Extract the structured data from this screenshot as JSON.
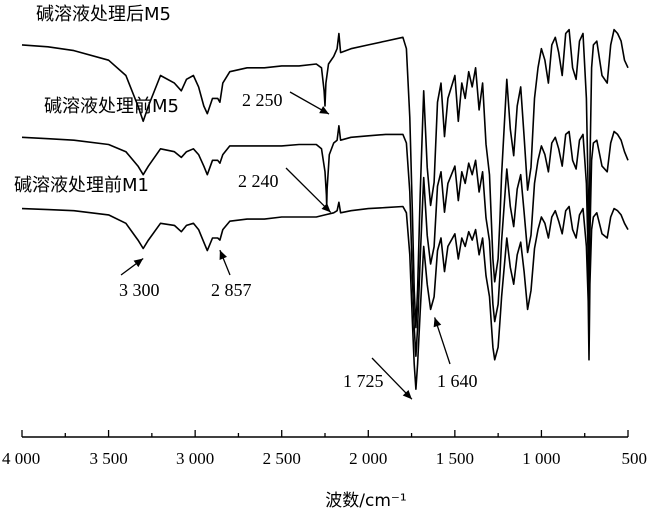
{
  "chart_data": {
    "type": "line",
    "title": "",
    "xlabel": "波数/cm⁻¹",
    "ylabel": "",
    "xlim": [
      4000,
      500
    ],
    "x_reversed": true,
    "x_ticks": [
      4000,
      3500,
      3000,
      2500,
      2000,
      1500,
      1000,
      500
    ],
    "x_tick_labels": [
      "4 000",
      "3 500",
      "3 000",
      "2 500",
      "2 000",
      "1 500",
      "1 000",
      "500"
    ],
    "y_axis_visible": false,
    "grid": false,
    "series": [
      {
        "name": "碱溶液处理后M5",
        "baseline": 0.94,
        "x": [
          4000,
          3850,
          3700,
          3500,
          3400,
          3330,
          3300,
          3270,
          3200,
          3120,
          3080,
          3050,
          3010,
          2980,
          2950,
          2930,
          2900,
          2870,
          2857,
          2840,
          2800,
          2700,
          2600,
          2500,
          2400,
          2300,
          2270,
          2255,
          2250,
          2245,
          2230,
          2200,
          2180,
          2170,
          2160,
          2100,
          2000,
          1900,
          1800,
          1780,
          1760,
          1745,
          1735,
          1725,
          1715,
          1700,
          1680,
          1660,
          1640,
          1620,
          1600,
          1580,
          1560,
          1540,
          1500,
          1480,
          1460,
          1440,
          1420,
          1400,
          1380,
          1360,
          1340,
          1320,
          1300,
          1280,
          1270,
          1250,
          1240,
          1230,
          1200,
          1180,
          1160,
          1140,
          1120,
          1100,
          1080,
          1060,
          1040,
          1020,
          1000,
          980,
          960,
          940,
          920,
          900,
          880,
          860,
          840,
          820,
          800,
          780,
          760,
          740,
          730,
          725,
          720,
          710,
          700,
          680,
          650,
          620,
          600,
          580,
          560,
          540,
          520,
          500
        ],
        "y": [
          0.94,
          0.935,
          0.925,
          0.9,
          0.86,
          0.78,
          0.74,
          0.78,
          0.86,
          0.84,
          0.82,
          0.85,
          0.86,
          0.83,
          0.78,
          0.76,
          0.8,
          0.8,
          0.79,
          0.84,
          0.87,
          0.88,
          0.88,
          0.885,
          0.885,
          0.89,
          0.88,
          0.82,
          0.78,
          0.84,
          0.89,
          0.91,
          0.93,
          0.97,
          0.92,
          0.93,
          0.94,
          0.95,
          0.96,
          0.93,
          0.75,
          0.5,
          0.3,
          0.2,
          0.3,
          0.55,
          0.82,
          0.62,
          0.52,
          0.58,
          0.79,
          0.84,
          0.7,
          0.8,
          0.86,
          0.74,
          0.84,
          0.8,
          0.87,
          0.83,
          0.88,
          0.77,
          0.84,
          0.68,
          0.6,
          0.38,
          0.32,
          0.38,
          0.48,
          0.6,
          0.85,
          0.72,
          0.65,
          0.78,
          0.83,
          0.7,
          0.56,
          0.62,
          0.8,
          0.88,
          0.93,
          0.9,
          0.84,
          0.94,
          0.96,
          0.92,
          0.86,
          0.97,
          0.98,
          0.88,
          0.85,
          0.95,
          0.97,
          0.8,
          0.55,
          0.32,
          0.62,
          0.88,
          0.94,
          0.95,
          0.86,
          0.84,
          0.94,
          0.98,
          0.97,
          0.95,
          0.9,
          0.88
        ]
      },
      {
        "name": "碱溶液处理前M5",
        "baseline": 0.94,
        "x": [
          4000,
          3850,
          3700,
          3500,
          3400,
          3330,
          3300,
          3270,
          3200,
          3120,
          3080,
          3050,
          3010,
          2980,
          2950,
          2930,
          2900,
          2870,
          2857,
          2840,
          2800,
          2700,
          2600,
          2500,
          2400,
          2300,
          2270,
          2250,
          2242,
          2240,
          2238,
          2225,
          2200,
          2180,
          2170,
          2160,
          2100,
          2000,
          1900,
          1800,
          1780,
          1760,
          1745,
          1735,
          1725,
          1715,
          1700,
          1680,
          1660,
          1640,
          1620,
          1600,
          1580,
          1560,
          1540,
          1500,
          1480,
          1460,
          1440,
          1420,
          1400,
          1380,
          1360,
          1340,
          1320,
          1300,
          1280,
          1270,
          1250,
          1240,
          1230,
          1200,
          1180,
          1160,
          1140,
          1120,
          1100,
          1080,
          1060,
          1040,
          1020,
          1000,
          980,
          960,
          940,
          920,
          900,
          880,
          860,
          840,
          820,
          800,
          780,
          760,
          740,
          730,
          725,
          720,
          710,
          700,
          680,
          650,
          620,
          600,
          580,
          560,
          540,
          520,
          500
        ],
        "y": [
          0.94,
          0.935,
          0.93,
          0.915,
          0.89,
          0.84,
          0.81,
          0.84,
          0.9,
          0.89,
          0.87,
          0.89,
          0.9,
          0.88,
          0.84,
          0.81,
          0.86,
          0.86,
          0.85,
          0.88,
          0.91,
          0.91,
          0.91,
          0.91,
          0.915,
          0.915,
          0.9,
          0.82,
          0.74,
          0.7,
          0.76,
          0.88,
          0.92,
          0.93,
          0.98,
          0.93,
          0.94,
          0.945,
          0.95,
          0.95,
          0.92,
          0.75,
          0.45,
          0.28,
          0.18,
          0.28,
          0.52,
          0.8,
          0.6,
          0.5,
          0.56,
          0.77,
          0.82,
          0.68,
          0.78,
          0.84,
          0.72,
          0.82,
          0.78,
          0.85,
          0.81,
          0.86,
          0.75,
          0.82,
          0.66,
          0.58,
          0.36,
          0.3,
          0.36,
          0.46,
          0.58,
          0.83,
          0.7,
          0.63,
          0.76,
          0.81,
          0.68,
          0.54,
          0.6,
          0.78,
          0.86,
          0.91,
          0.88,
          0.82,
          0.92,
          0.94,
          0.9,
          0.84,
          0.95,
          0.96,
          0.86,
          0.83,
          0.93,
          0.95,
          0.78,
          0.52,
          0.3,
          0.6,
          0.86,
          0.92,
          0.93,
          0.84,
          0.82,
          0.92,
          0.96,
          0.95,
          0.93,
          0.89,
          0.86
        ]
      },
      {
        "name": "碱溶液处理前M1",
        "baseline": 0.94,
        "x": [
          4000,
          3850,
          3700,
          3500,
          3400,
          3330,
          3300,
          3270,
          3200,
          3120,
          3080,
          3050,
          3010,
          2980,
          2950,
          2930,
          2900,
          2870,
          2857,
          2840,
          2800,
          2700,
          2600,
          2500,
          2400,
          2300,
          2250,
          2200,
          2180,
          2170,
          2160,
          2100,
          2000,
          1900,
          1800,
          1780,
          1760,
          1745,
          1735,
          1725,
          1715,
          1700,
          1680,
          1660,
          1640,
          1620,
          1600,
          1580,
          1560,
          1540,
          1500,
          1480,
          1460,
          1440,
          1420,
          1400,
          1380,
          1360,
          1340,
          1320,
          1300,
          1280,
          1270,
          1250,
          1240,
          1230,
          1200,
          1180,
          1160,
          1140,
          1120,
          1100,
          1080,
          1060,
          1040,
          1020,
          1000,
          980,
          960,
          940,
          920,
          900,
          880,
          860,
          840,
          820,
          800,
          780,
          760,
          740,
          730,
          725,
          720,
          710,
          700,
          680,
          650,
          620,
          600,
          580,
          560,
          540,
          520,
          500
        ],
        "y": [
          0.94,
          0.935,
          0.93,
          0.91,
          0.87,
          0.79,
          0.75,
          0.79,
          0.87,
          0.86,
          0.83,
          0.86,
          0.87,
          0.84,
          0.78,
          0.74,
          0.8,
          0.8,
          0.79,
          0.84,
          0.88,
          0.89,
          0.89,
          0.9,
          0.9,
          0.9,
          0.91,
          0.92,
          0.93,
          0.97,
          0.92,
          0.93,
          0.94,
          0.945,
          0.95,
          0.92,
          0.72,
          0.4,
          0.2,
          0.08,
          0.2,
          0.45,
          0.76,
          0.58,
          0.46,
          0.52,
          0.74,
          0.8,
          0.64,
          0.76,
          0.82,
          0.7,
          0.8,
          0.76,
          0.83,
          0.79,
          0.84,
          0.72,
          0.8,
          0.62,
          0.52,
          0.28,
          0.22,
          0.28,
          0.4,
          0.52,
          0.8,
          0.66,
          0.58,
          0.72,
          0.78,
          0.64,
          0.46,
          0.55,
          0.75,
          0.84,
          0.9,
          0.87,
          0.8,
          0.9,
          0.93,
          0.88,
          0.82,
          0.93,
          0.95,
          0.84,
          0.8,
          0.91,
          0.94,
          0.76,
          0.5,
          0.22,
          0.58,
          0.84,
          0.9,
          0.92,
          0.82,
          0.8,
          0.9,
          0.94,
          0.93,
          0.91,
          0.87,
          0.84
        ]
      }
    ],
    "annotations": [
      {
        "text": "2 250",
        "x": 2250,
        "series": 0
      },
      {
        "text": "2 240",
        "x": 2240,
        "series": 1
      },
      {
        "text": "3 300",
        "x": 3300,
        "series": 2
      },
      {
        "text": "2 857",
        "x": 2857,
        "series": 2
      },
      {
        "text": "1 725",
        "x": 1725,
        "series": 2
      },
      {
        "text": "1 640",
        "x": 1640,
        "series": 2
      }
    ]
  }
}
